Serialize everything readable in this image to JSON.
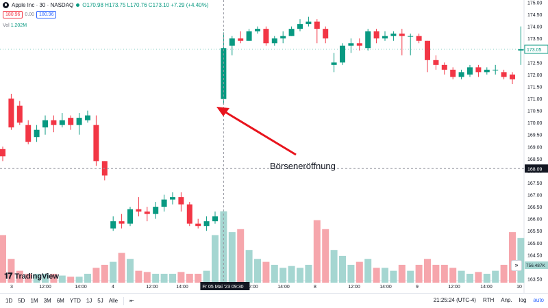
{
  "header": {
    "symbol": "Apple Inc · 30 · NASDAQ",
    "ohlc": "O170.98 H173.75 L170.76 C173.10 +7.29 (+4.40%)",
    "sell_price": "180.96",
    "spread": "0.00",
    "buy_price": "180.96",
    "volume_label": "Vol",
    "volume_value": "1.202M"
  },
  "annotation": "Börseneröffnung",
  "crosshair_label": "Fr 05 Mai '23",
  "crosshair_time": "09:30",
  "crosshair_price": "168.09",
  "last_price_label": "173.05",
  "volume_axis_label": "756.487K",
  "colors": {
    "up": "#089981",
    "down": "#f23645",
    "vol_up": "#a5d6d1",
    "vol_down": "#f6a6ac",
    "arrow": "#e8141d"
  },
  "bottombar": {
    "timeframes": [
      "1D",
      "5D",
      "1M",
      "3M",
      "6M",
      "YTD",
      "1J",
      "5J",
      "Alle"
    ],
    "clock": "21:25:24 (UTC-4)",
    "session": "RTH",
    "adj": "Anp.",
    "log": "log",
    "auto": "auto"
  },
  "branding": "TradingView",
  "chart_data": {
    "type": "candlestick",
    "price_ticks": [
      "175.00",
      "174.50",
      "174.00",
      "173.50",
      "173.00",
      "172.50",
      "172.00",
      "171.50",
      "171.00",
      "170.50",
      "170.00",
      "169.50",
      "169.00",
      "168.50",
      "168.00",
      "167.50",
      "167.00",
      "166.50",
      "166.00",
      "165.50",
      "165.00",
      "164.50",
      "164.00",
      "163.50"
    ],
    "time_ticks": [
      "3",
      "12:00",
      "14:00",
      "4",
      "12:00",
      "14:00",
      "12:00",
      "14:00",
      "8",
      "12:00",
      "14:00",
      "9",
      "12:00",
      "14:00",
      "10"
    ],
    "y_range": [
      163.3,
      175.3
    ],
    "candles": [
      [
        168.9,
        168.6,
        169.0,
        168.4
      ],
      [
        171.0,
        169.8,
        171.2,
        169.7
      ],
      [
        170.7,
        170.0,
        170.9,
        169.9
      ],
      [
        169.9,
        169.2,
        170.1,
        169.1
      ],
      [
        169.4,
        169.7,
        169.9,
        169.2
      ],
      [
        169.8,
        170.1,
        170.3,
        169.5
      ],
      [
        170.1,
        169.9,
        170.3,
        169.6
      ],
      [
        169.9,
        170.1,
        170.4,
        169.8
      ],
      [
        170.2,
        169.9,
        170.3,
        169.7
      ],
      [
        169.9,
        170.2,
        170.4,
        169.5
      ],
      [
        170.1,
        170.3,
        170.5,
        170.0
      ],
      [
        169.9,
        168.4,
        170.3,
        168.2
      ],
      [
        168.4,
        167.8,
        168.4,
        167.6
      ],
      [
        165.6,
        165.9,
        166.1,
        165.5
      ],
      [
        165.9,
        165.8,
        166.2,
        165.6
      ],
      [
        165.8,
        166.4,
        166.5,
        165.7
      ],
      [
        166.4,
        166.3,
        166.9,
        166.1
      ],
      [
        166.3,
        166.2,
        166.5,
        165.9
      ],
      [
        166.2,
        166.5,
        166.7,
        166.0
      ],
      [
        166.5,
        166.8,
        167.0,
        166.3
      ],
      [
        166.8,
        166.9,
        167.1,
        166.6
      ],
      [
        166.9,
        166.6,
        167.1,
        166.3
      ],
      [
        166.6,
        165.8,
        166.7,
        165.7
      ],
      [
        165.8,
        165.7,
        166.0,
        165.6
      ],
      [
        165.7,
        165.9,
        166.1,
        165.5
      ],
      [
        165.9,
        166.1,
        166.3,
        165.8
      ],
      [
        170.98,
        173.1,
        173.75,
        170.76
      ],
      [
        173.2,
        173.5,
        173.6,
        172.8
      ],
      [
        173.5,
        173.4,
        173.8,
        173.3
      ],
      [
        173.4,
        173.8,
        173.9,
        173.4
      ],
      [
        173.8,
        173.9,
        174.0,
        173.7
      ],
      [
        173.9,
        173.3,
        174.0,
        173.2
      ],
      [
        173.3,
        173.5,
        173.6,
        173.2
      ],
      [
        173.5,
        173.6,
        173.8,
        173.3
      ],
      [
        173.6,
        173.9,
        174.0,
        173.6
      ],
      [
        173.9,
        174.1,
        174.3,
        173.8
      ],
      [
        174.1,
        174.2,
        174.4,
        174.0
      ],
      [
        174.2,
        173.9,
        174.3,
        173.3
      ],
      [
        173.9,
        173.5,
        174.0,
        173.3
      ],
      [
        172.4,
        172.5,
        172.9,
        172.1
      ],
      [
        172.5,
        173.2,
        173.3,
        172.4
      ],
      [
        173.2,
        173.3,
        173.5,
        172.9
      ],
      [
        173.3,
        173.2,
        173.5,
        173.0
      ],
      [
        173.1,
        173.8,
        173.9,
        173.0
      ],
      [
        173.8,
        173.5,
        173.9,
        173.3
      ],
      [
        173.5,
        173.6,
        173.8,
        173.4
      ],
      [
        173.6,
        173.7,
        173.8,
        173.4
      ],
      [
        173.7,
        173.6,
        173.9,
        172.8
      ],
      [
        173.6,
        173.6,
        173.7,
        172.8
      ],
      [
        173.6,
        173.4,
        173.7,
        173.3
      ],
      [
        173.4,
        172.6,
        173.4,
        172.1
      ],
      [
        172.6,
        172.4,
        172.8,
        172.2
      ],
      [
        172.4,
        172.2,
        172.5,
        172.0
      ],
      [
        172.2,
        171.9,
        172.3,
        171.8
      ],
      [
        171.9,
        172.1,
        172.2,
        171.8
      ],
      [
        172.0,
        172.3,
        172.4,
        171.9
      ],
      [
        172.3,
        172.1,
        172.4,
        171.9
      ],
      [
        172.1,
        172.2,
        172.3,
        172.0
      ],
      [
        172.2,
        172.2,
        172.4,
        172.0
      ],
      [
        172.1,
        171.9,
        172.2,
        171.8
      ],
      [
        172.0,
        171.8,
        172.1,
        171.6
      ],
      [
        173.0,
        173.05,
        174.0,
        172.4
      ]
    ],
    "volumes": [
      0.8,
      0.4,
      0.2,
      0.15,
      0.15,
      0.15,
      0.15,
      0.12,
      0.1,
      0.1,
      0.15,
      0.25,
      0.3,
      0.35,
      0.5,
      0.4,
      0.2,
      0.18,
      0.15,
      0.15,
      0.15,
      0.18,
      0.15,
      0.15,
      0.2,
      0.8,
      1.2,
      0.85,
      0.9,
      0.55,
      0.4,
      0.35,
      0.3,
      0.25,
      0.28,
      0.25,
      0.3,
      1.05,
      0.9,
      0.55,
      0.45,
      0.3,
      0.35,
      0.4,
      0.25,
      0.25,
      0.2,
      0.3,
      0.2,
      0.3,
      0.4,
      0.3,
      0.3,
      0.25,
      0.2,
      0.15,
      0.18,
      0.15,
      0.2,
      0.3,
      0.85,
      0.75
    ],
    "vol_max": 1.3
  }
}
